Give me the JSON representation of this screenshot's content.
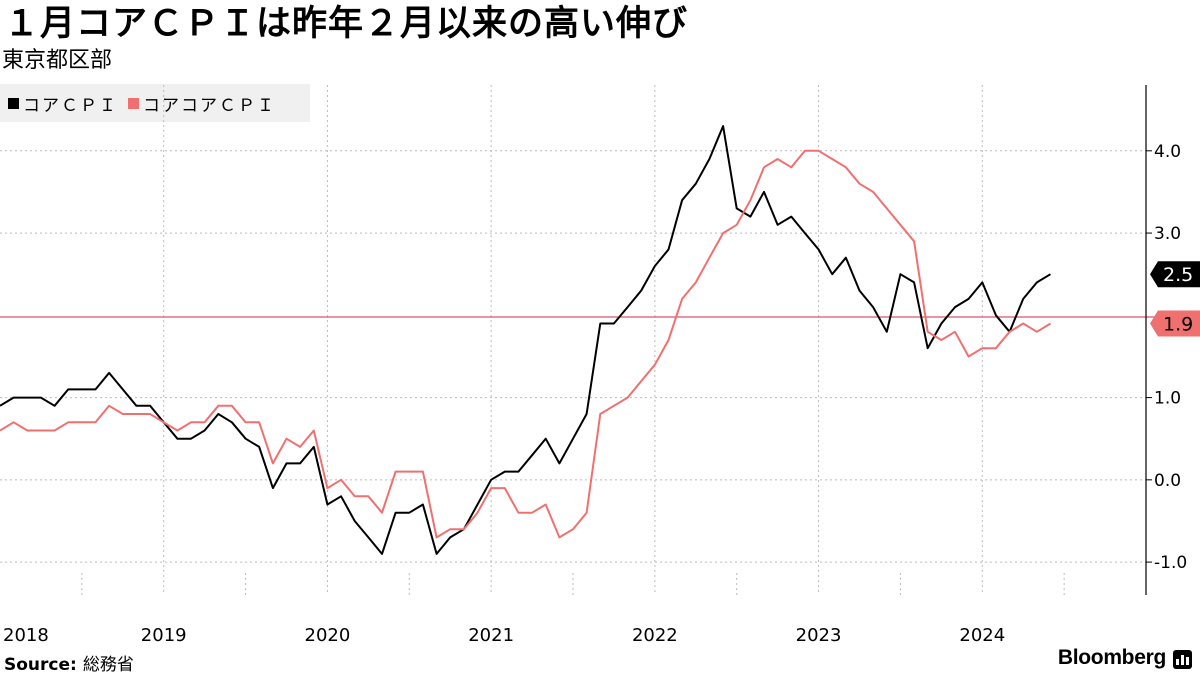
{
  "header": {
    "title": "１月コアＣＰＩは昨年２月以来の高い伸び",
    "subtitle": "東京都区部"
  },
  "footer": {
    "source_label": "Source:",
    "source_name": "総務省",
    "brand": "Bloomberg"
  },
  "colors": {
    "core_cpi": "#000000",
    "core_core_cpi": "#f07070",
    "reference_line": "#d9546a",
    "grid": "#bbbbbb",
    "legend_bg": "#f0f0f0"
  },
  "chart_data": {
    "type": "line",
    "x_start": "2018-01",
    "x_end": "2025-01",
    "xticks": [
      "2018",
      "2019",
      "2020",
      "2021",
      "2022",
      "2023",
      "2024"
    ],
    "yticks": [
      "-1.0",
      "0.0",
      "1.0",
      "3.0",
      "4.0"
    ],
    "ylim": [
      -1.4,
      4.8
    ],
    "y_axis_side": "right",
    "grid": true,
    "legend_position": "top-left",
    "reference_line": {
      "value": 1.98
    },
    "series": [
      {
        "name": "コアＣＰＩ",
        "color": "#000000",
        "last_value_label": "2.5",
        "values": [
          0.9,
          1.0,
          1.0,
          1.0,
          0.9,
          1.1,
          1.1,
          1.1,
          1.3,
          1.1,
          0.9,
          0.9,
          0.7,
          0.5,
          0.5,
          0.6,
          0.8,
          0.7,
          0.5,
          0.4,
          -0.1,
          0.2,
          0.2,
          0.4,
          -0.3,
          -0.2,
          -0.5,
          -0.7,
          -0.9,
          -0.4,
          -0.4,
          -0.3,
          -0.9,
          -0.7,
          -0.6,
          -0.3,
          0.0,
          0.1,
          0.1,
          0.3,
          0.5,
          0.2,
          0.5,
          0.8,
          1.9,
          1.9,
          2.1,
          2.3,
          2.6,
          2.8,
          3.4,
          3.6,
          3.9,
          4.3,
          3.3,
          3.2,
          3.5,
          3.1,
          3.2,
          3.0,
          2.8,
          2.5,
          2.7,
          2.3,
          2.1,
          1.8,
          2.5,
          2.4,
          1.6,
          1.9,
          2.1,
          2.2,
          2.4,
          2.0,
          1.8,
          2.2,
          2.4,
          2.5
        ]
      },
      {
        "name": "コアコアＣＰＩ",
        "color": "#f07070",
        "last_value_label": "1.9",
        "values": [
          0.6,
          0.7,
          0.6,
          0.6,
          0.6,
          0.7,
          0.7,
          0.7,
          0.9,
          0.8,
          0.8,
          0.8,
          0.7,
          0.6,
          0.7,
          0.7,
          0.9,
          0.9,
          0.7,
          0.7,
          0.2,
          0.5,
          0.4,
          0.6,
          -0.1,
          0.0,
          -0.2,
          -0.2,
          -0.4,
          0.1,
          0.1,
          0.1,
          -0.7,
          -0.6,
          -0.6,
          -0.4,
          -0.1,
          -0.1,
          -0.4,
          -0.4,
          -0.3,
          -0.7,
          -0.6,
          -0.4,
          0.8,
          0.9,
          1.0,
          1.2,
          1.4,
          1.7,
          2.2,
          2.4,
          2.7,
          3.0,
          3.1,
          3.4,
          3.8,
          3.9,
          3.8,
          4.0,
          4.0,
          3.9,
          3.8,
          3.6,
          3.5,
          3.3,
          3.1,
          2.9,
          1.8,
          1.7,
          1.8,
          1.5,
          1.6,
          1.6,
          1.8,
          1.9,
          1.8,
          1.9
        ]
      }
    ]
  }
}
